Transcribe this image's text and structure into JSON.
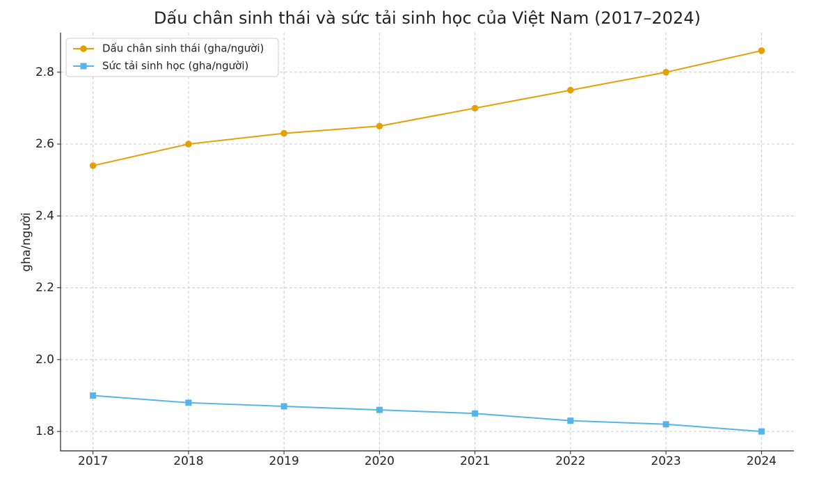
{
  "chart_data": {
    "type": "line",
    "title": "Dấu chân sinh thái và sức tải sinh học của Việt Nam (2017–2024)",
    "ylabel": "gha/người",
    "x": [
      2017,
      2018,
      2019,
      2020,
      2021,
      2022,
      2023,
      2024
    ],
    "series": [
      {
        "name": "Dấu chân sinh thái (gha/người)",
        "color": "#e69f00",
        "marker": "circle",
        "values": [
          2.54,
          2.6,
          2.63,
          2.65,
          2.7,
          2.75,
          2.8,
          2.86
        ]
      },
      {
        "name": "Sức tải sinh học (gha/người)",
        "color": "#56b4e9",
        "marker": "square",
        "values": [
          1.9,
          1.88,
          1.87,
          1.86,
          1.85,
          1.83,
          1.82,
          1.8
        ]
      }
    ],
    "xlim": [
      2016.66,
      2024.34
    ],
    "xticks": [
      2017,
      2018,
      2019,
      2020,
      2021,
      2022,
      2023,
      2024
    ],
    "ylim": [
      1.746,
      2.91
    ],
    "yticks": [
      1.8,
      {
        "value": 2,
        "label": "2.0"
      },
      2.2,
      2.4,
      2.6,
      2.8
    ],
    "grid": true,
    "legend": "upper left"
  }
}
